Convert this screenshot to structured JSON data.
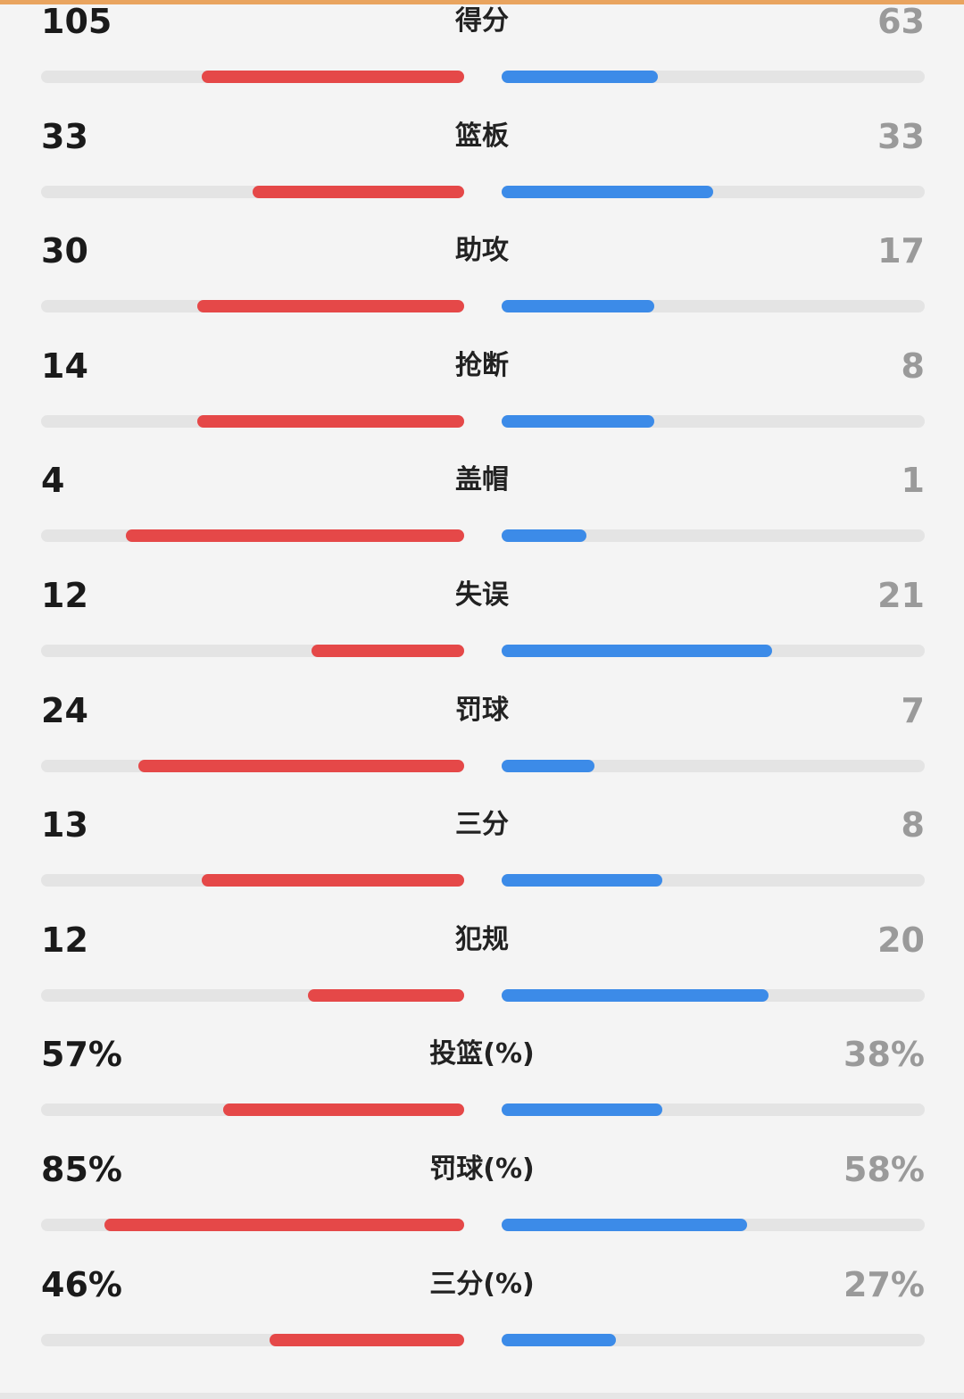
{
  "colors": {
    "home": "#e54848",
    "away": "#3c8be8",
    "track": "#e4e4e4",
    "accent": "#e9a45f"
  },
  "stats": [
    {
      "label": "得分",
      "home": "105",
      "away": "63",
      "home_ratio": 0.62,
      "away_ratio": 0.37
    },
    {
      "label": "篮板",
      "home": "33",
      "away": "33",
      "home_ratio": 0.5,
      "away_ratio": 0.5
    },
    {
      "label": "助攻",
      "home": "30",
      "away": "17",
      "home_ratio": 0.63,
      "away_ratio": 0.36
    },
    {
      "label": "抢断",
      "home": "14",
      "away": "8",
      "home_ratio": 0.63,
      "away_ratio": 0.36
    },
    {
      "label": "盖帽",
      "home": "4",
      "away": "1",
      "home_ratio": 0.8,
      "away_ratio": 0.2
    },
    {
      "label": "失误",
      "home": "12",
      "away": "21",
      "home_ratio": 0.36,
      "away_ratio": 0.64
    },
    {
      "label": "罚球",
      "home": "24",
      "away": "7",
      "home_ratio": 0.77,
      "away_ratio": 0.22
    },
    {
      "label": "三分",
      "home": "13",
      "away": "8",
      "home_ratio": 0.62,
      "away_ratio": 0.38
    },
    {
      "label": "犯规",
      "home": "12",
      "away": "20",
      "home_ratio": 0.37,
      "away_ratio": 0.63
    },
    {
      "label": "投篮(%)",
      "home": "57%",
      "away": "38%",
      "home_ratio": 0.57,
      "away_ratio": 0.38
    },
    {
      "label": "罚球(%)",
      "home": "85%",
      "away": "58%",
      "home_ratio": 0.85,
      "away_ratio": 0.58
    },
    {
      "label": "三分(%)",
      "home": "46%",
      "away": "27%",
      "home_ratio": 0.46,
      "away_ratio": 0.27
    }
  ]
}
